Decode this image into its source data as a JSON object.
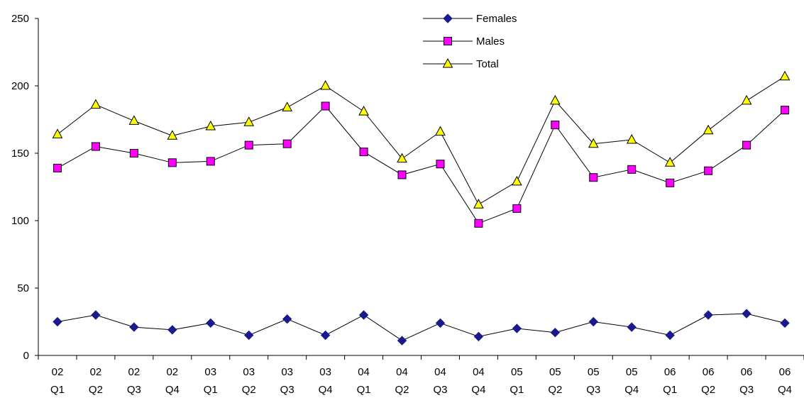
{
  "chart_data": {
    "type": "line",
    "title": "",
    "xlabel": "",
    "ylabel": "",
    "ylim": [
      0,
      250
    ],
    "yticks": [
      0,
      50,
      100,
      150,
      200,
      250
    ],
    "grid": false,
    "legend_position": "top-center",
    "categories": [
      [
        "02",
        "Q1"
      ],
      [
        "02",
        "Q2"
      ],
      [
        "02",
        "Q3"
      ],
      [
        "02",
        "Q4"
      ],
      [
        "03",
        "Q1"
      ],
      [
        "03",
        "Q2"
      ],
      [
        "03",
        "Q3"
      ],
      [
        "03",
        "Q4"
      ],
      [
        "04",
        "Q1"
      ],
      [
        "04",
        "Q2"
      ],
      [
        "04",
        "Q3"
      ],
      [
        "04",
        "Q4"
      ],
      [
        "05",
        "Q1"
      ],
      [
        "05",
        "Q2"
      ],
      [
        "05",
        "Q3"
      ],
      [
        "05",
        "Q4"
      ],
      [
        "06",
        "Q1"
      ],
      [
        "06",
        "Q2"
      ],
      [
        "06",
        "Q3"
      ],
      [
        "06",
        "Q4"
      ]
    ],
    "series": [
      {
        "name": "Females",
        "marker": "diamond",
        "color": "#1a1a8c",
        "values": [
          25,
          30,
          21,
          19,
          24,
          15,
          27,
          15,
          30,
          11,
          24,
          14,
          20,
          17,
          25,
          21,
          15,
          30,
          31,
          24
        ]
      },
      {
        "name": "Males",
        "marker": "square",
        "color": "#ff00ff",
        "values": [
          139,
          155,
          150,
          143,
          144,
          156,
          157,
          185,
          151,
          134,
          142,
          98,
          109,
          171,
          132,
          138,
          128,
          137,
          156,
          182
        ]
      },
      {
        "name": "Total",
        "marker": "triangle",
        "color": "#ffff00",
        "values": [
          164,
          186,
          174,
          163,
          170,
          173,
          184,
          200,
          181,
          146,
          166,
          112,
          129,
          189,
          157,
          160,
          143,
          167,
          189,
          207
        ]
      }
    ]
  }
}
